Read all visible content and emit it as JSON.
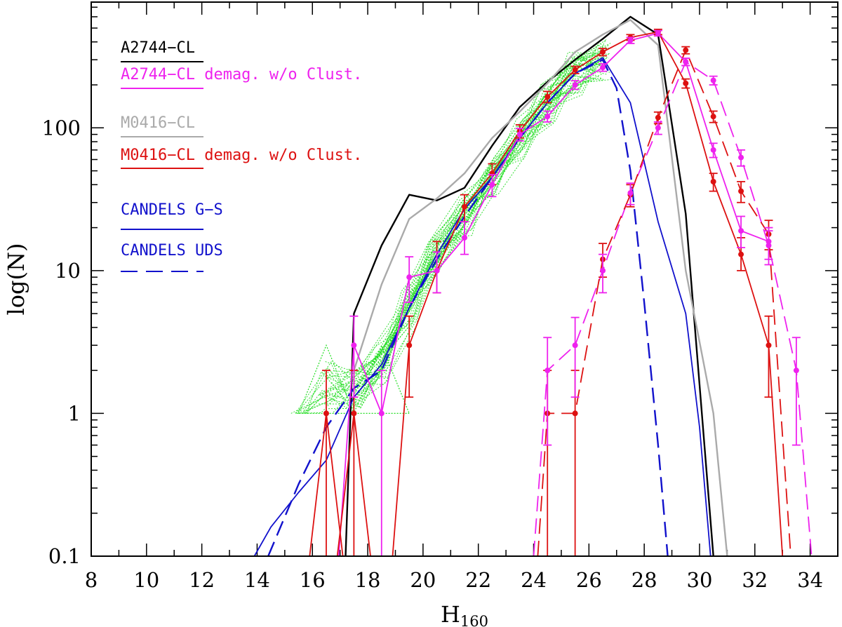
{
  "chart_data": {
    "type": "line",
    "xlabel_main": "H",
    "xlabel_sub": "160",
    "ylabel": "log(N)",
    "xlim": [
      8,
      35
    ],
    "ylim": [
      0.1,
      760
    ],
    "yscale": "log",
    "x_ticks": [
      8,
      10,
      12,
      14,
      16,
      18,
      20,
      22,
      24,
      26,
      28,
      30,
      32,
      34
    ],
    "x_tick_labels": [
      "8",
      "10",
      "12",
      "14",
      "16",
      "18",
      "20",
      "22",
      "24",
      "26",
      "28",
      "30",
      "32",
      "34"
    ],
    "y_ticks": [
      0.1,
      1,
      10,
      100
    ],
    "y_tick_labels": [
      "0.1",
      "1",
      "10",
      "100"
    ],
    "colors": {
      "black": "#000000",
      "magenta": "#ee22ee",
      "gray": "#aaaaaa",
      "red": "#dd1111",
      "blue": "#1111cc",
      "green": "#22dd22"
    },
    "legend": [
      {
        "label": "A2744−CL",
        "color": "#000000",
        "style": "solid"
      },
      {
        "label": "A2744−CL demag. w/o Clust.",
        "color": "#ee22ee",
        "style": "solid"
      },
      {
        "label": "M0416−CL",
        "color": "#aaaaaa",
        "style": "solid"
      },
      {
        "label": "M0416−CL demag. w/o Clust.",
        "color": "#dd1111",
        "style": "solid"
      },
      {
        "label": "CANDELS G−S",
        "color": "#1111cc",
        "style": "solid"
      },
      {
        "label": "CANDELS UDS",
        "color": "#1111cc",
        "style": "dashed"
      }
    ],
    "series": [
      {
        "name": "A2744-CL",
        "color": "#000000",
        "style": "solid",
        "width": 2.4,
        "x": [
          17.2,
          17.5,
          18.5,
          19.5,
          20.5,
          21.5,
          22.5,
          23.5,
          24.5,
          25.5,
          26.5,
          27.5,
          28.5,
          29.5,
          30.5
        ],
        "y": [
          0.1,
          5,
          15,
          34,
          31,
          38,
          75,
          140,
          210,
          300,
          420,
          600,
          450,
          25,
          0.1
        ]
      },
      {
        "name": "M0416-CL",
        "color": "#aaaaaa",
        "style": "solid",
        "width": 2.4,
        "x": [
          17.5,
          18.5,
          19.5,
          20.5,
          21.5,
          22.5,
          23.5,
          24.5,
          25.5,
          26.5,
          27.5,
          28.5,
          29.5,
          30.5,
          31.0
        ],
        "y": [
          2,
          8,
          23,
          32,
          48,
          85,
          130,
          205,
          340,
          450,
          570,
          380,
          10,
          1,
          0.1
        ]
      },
      {
        "name": "CANDELS G-S",
        "color": "#1111cc",
        "style": "solid",
        "width": 1.8,
        "x": [
          13.9,
          14.5,
          15.5,
          16.5,
          17.5,
          18.5,
          19.5,
          20.5,
          21.5,
          22.5,
          23.5,
          24.5,
          25.5,
          26.5,
          27.5,
          28.5,
          29.5,
          30.0,
          30.4
        ],
        "y": [
          0.1,
          0.16,
          0.28,
          0.47,
          1.3,
          2.2,
          5.5,
          13,
          27,
          45,
          85,
          150,
          240,
          310,
          150,
          22,
          5,
          0.8,
          0.1
        ]
      },
      {
        "name": "CANDELS UDS",
        "color": "#1111cc",
        "style": "dashed",
        "width": 2.4,
        "x": [
          14.4,
          15.5,
          16.5,
          17.5,
          18.5,
          19.5,
          20.5,
          21.5,
          22.5,
          23.5,
          24.5,
          25.5,
          26.5,
          27.0,
          27.5,
          28.0,
          28.5,
          28.85
        ],
        "y": [
          0.1,
          0.32,
          0.8,
          1.5,
          2,
          5.5,
          12,
          24,
          45,
          85,
          150,
          240,
          300,
          190,
          50,
          6,
          0.6,
          0.1
        ]
      },
      {
        "name": "A2744-CL demag. w/o Clust.",
        "color": "#ee22ee",
        "style": "solid",
        "width": 1.8,
        "x": [
          16.95,
          17.5,
          18.5,
          19.5,
          20.5,
          21.5,
          22.5,
          23.5,
          24.5,
          25.5,
          26.5,
          27.5,
          28.5,
          29.5,
          30.5,
          31.5,
          32.5
        ],
        "y": [
          0.1,
          3,
          1,
          9,
          10,
          17,
          40,
          90,
          120,
          200,
          265,
          410,
          460,
          290,
          70,
          19,
          16
        ]
      },
      {
        "name": "A2744-CL demag. w/o Clust. (dashed)",
        "color": "#ee22ee",
        "style": "dashed",
        "width": 1.8,
        "x": [
          24.0,
          24.5,
          25.5,
          26.5,
          27.5,
          28.5,
          29.5,
          30.5,
          31.5,
          32.5,
          33.5,
          34.05
        ],
        "y": [
          0.1,
          2,
          3,
          10,
          35,
          100,
          290,
          215,
          62,
          15,
          2,
          0.1
        ]
      },
      {
        "name": "M0416-CL demag. w/o Clust.",
        "color": "#dd1111",
        "style": "solid",
        "width": 1.8,
        "x": [
          18.9,
          19.5,
          20.5,
          21.5,
          22.5,
          23.5,
          24.5,
          25.5,
          26.5,
          27.5,
          28.5,
          29.5,
          30.5,
          31.5,
          32.5,
          33.0
        ],
        "y": [
          0.1,
          3,
          10,
          28,
          48,
          95,
          165,
          255,
          340,
          430,
          470,
          205,
          42,
          13,
          3,
          0.1
        ]
      },
      {
        "name": "M0416-CL demag. w/o Clust. (dashed)",
        "color": "#dd1111",
        "style": "dashed",
        "width": 1.8,
        "x": [
          24.15,
          24.5,
          25.5,
          26.5,
          27.5,
          28.5,
          29.5,
          30.5,
          31.5,
          32.5,
          33.3
        ],
        "y": [
          0.1,
          1,
          1,
          12,
          34,
          118,
          350,
          120,
          36,
          18,
          0.1
        ]
      }
    ],
    "spikes": [
      {
        "color": "#dd1111",
        "width": 1.8,
        "x": [
          15.9,
          16.5,
          17.1
        ],
        "y": [
          0.1,
          1,
          0.1
        ]
      },
      {
        "color": "#dd1111",
        "width": 1.8,
        "x": [
          16.9,
          17.5,
          18.1
        ],
        "y": [
          0.1,
          1,
          0.1
        ]
      }
    ],
    "error_points": [
      {
        "series": "M0416-CL demag. w/o Clust.",
        "color": "#dd1111",
        "points": [
          [
            16.5,
            1,
            0.1,
            2
          ],
          [
            17.5,
            1,
            0.1,
            2
          ],
          [
            19.5,
            3,
            1.3,
            4.8
          ],
          [
            20.5,
            10,
            7,
            16
          ],
          [
            21.5,
            28,
            22,
            34
          ],
          [
            22.5,
            48,
            40,
            56
          ],
          [
            23.5,
            95,
            85,
            105
          ],
          [
            24.5,
            165,
            150,
            180
          ],
          [
            25.5,
            255,
            240,
            270
          ],
          [
            26.5,
            340,
            320,
            360
          ],
          [
            27.5,
            430,
            410,
            450
          ],
          [
            28.5,
            470,
            450,
            490
          ],
          [
            29.5,
            205,
            190,
            220
          ],
          [
            30.5,
            42,
            36,
            48
          ],
          [
            31.5,
            13,
            10,
            17
          ],
          [
            32.5,
            3,
            1.3,
            4.8
          ]
        ]
      },
      {
        "series": "M0416-CL demag. w/o Clust. (dashed)",
        "color": "#dd1111",
        "points": [
          [
            24.5,
            1,
            0.1,
            2
          ],
          [
            25.5,
            1,
            0.1,
            2
          ],
          [
            26.5,
            12,
            9,
            15.5
          ],
          [
            27.5,
            34,
            28,
            40
          ],
          [
            28.5,
            118,
            107,
            129
          ],
          [
            29.5,
            350,
            330,
            370
          ],
          [
            30.5,
            120,
            109,
            131
          ],
          [
            31.5,
            36,
            30,
            42
          ],
          [
            32.5,
            18,
            14,
            22.5
          ]
        ]
      },
      {
        "series": "A2744-CL demag. w/o Clust.",
        "color": "#ee22ee",
        "points": [
          [
            17.5,
            3,
            1.3,
            4.8
          ],
          [
            18.5,
            1,
            0.1,
            2
          ],
          [
            19.5,
            9,
            6,
            12.5
          ],
          [
            20.5,
            10,
            7,
            13.5
          ],
          [
            21.5,
            17,
            13,
            22
          ],
          [
            22.5,
            40,
            33,
            47
          ],
          [
            23.5,
            90,
            81,
            99
          ],
          [
            24.5,
            120,
            110,
            131
          ],
          [
            25.5,
            200,
            186,
            214
          ],
          [
            26.5,
            265,
            249,
            281
          ],
          [
            27.5,
            410,
            390,
            430
          ],
          [
            28.5,
            460,
            440,
            480
          ],
          [
            29.5,
            290,
            273,
            307
          ],
          [
            30.5,
            70,
            62,
            78
          ],
          [
            31.5,
            19,
            14.5,
            24
          ],
          [
            32.5,
            16,
            12,
            20
          ]
        ]
      },
      {
        "series": "A2744-CL demag. w/o Clust. (dashed)",
        "color": "#ee22ee",
        "points": [
          [
            24.5,
            2,
            0.6,
            3.4
          ],
          [
            25.5,
            3,
            1.3,
            4.7
          ],
          [
            26.5,
            10,
            7,
            13
          ],
          [
            27.5,
            35,
            29,
            41
          ],
          [
            28.5,
            100,
            90,
            110
          ],
          [
            29.5,
            290,
            273,
            307
          ],
          [
            30.5,
            215,
            200,
            230
          ],
          [
            31.5,
            62,
            54,
            70
          ],
          [
            32.5,
            15,
            11,
            19
          ],
          [
            33.5,
            2,
            0.6,
            3.4
          ]
        ]
      }
    ],
    "realizations": {
      "color": "#22dd22",
      "count": 40,
      "x": [
        15.5,
        16.5,
        17.5,
        18.5,
        19.5,
        20.5,
        21.5,
        22.5,
        23.5,
        24.5,
        25.5,
        26.5
      ],
      "base": [
        1,
        1.1,
        1.5,
        2.2,
        5.5,
        12,
        24,
        45,
        85,
        150,
        240,
        300
      ]
    }
  }
}
